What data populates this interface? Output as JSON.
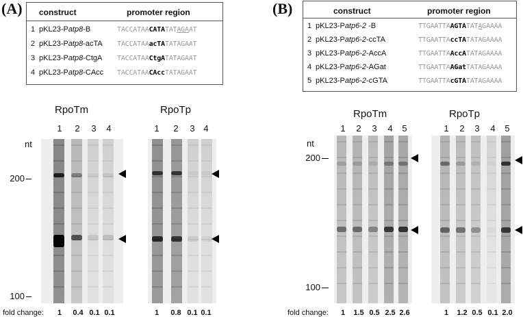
{
  "panelA": {
    "label": "(A)",
    "table": {
      "col1": "construct",
      "col2": "promoter region",
      "rows": [
        {
          "num": "1",
          "pre": "pKL23-P",
          "it": "atp8",
          "post": "-B",
          "seq_pre": "TACCATAA",
          "seq_bold": "CATA",
          "seq_mid": "TAT",
          "seq_u": "AGA",
          "seq_post": "AT"
        },
        {
          "num": "2",
          "pre": "pKL23-P",
          "it": "atp8",
          "post": "-acTA",
          "seq_pre": "TACCATAA",
          "seq_bold": "acTA",
          "seq_mid": "TATAGAAT",
          "seq_u": "",
          "seq_post": ""
        },
        {
          "num": "3",
          "pre": "pKL23-P",
          "it": "atp8",
          "post": "-CtgA",
          "seq_pre": "TACCATAA",
          "seq_bold": "CtgA",
          "seq_mid": "TATAGAAT",
          "seq_u": "",
          "seq_post": ""
        },
        {
          "num": "4",
          "pre": "pKL23-P",
          "it": "atp8",
          "post": "-CAcc",
          "seq_pre": "TACCATAA",
          "seq_bold": "CAcc",
          "seq_mid": "TATAGAAT",
          "seq_u": "",
          "seq_post": ""
        }
      ]
    },
    "gel1_title": "RpoTm",
    "gel2_title": "RpoTp",
    "lanes": [
      "1",
      "2",
      "3",
      "4"
    ],
    "nt_label": "nt",
    "mw_200": "200",
    "mw_100": "100",
    "fold_label": "fold change:",
    "fold1": [
      "1",
      "0.4",
      "0.1",
      "0.1"
    ],
    "fold2": [
      "1",
      "0.8",
      "0.1",
      "0.1"
    ]
  },
  "panelB": {
    "label": "(B)",
    "table": {
      "col1": "construct",
      "col2": "promoter region",
      "rows": [
        {
          "num": "1",
          "pre": "pKL23-P",
          "it": "atp6-2",
          "post": " -B",
          "seq_pre": "TTGAATTA",
          "seq_bold": "AGTA",
          "seq_mid": "TAT",
          "seq_u": "A",
          "seq_post": "GAAAA"
        },
        {
          "num": "2",
          "pre": "pKL23-P",
          "it": "atp6-2",
          "post": "-ccTA",
          "seq_pre": "TTGAATTA",
          "seq_bold": "ccTA",
          "seq_mid": "TATAGAAAA",
          "seq_u": "",
          "seq_post": ""
        },
        {
          "num": "3",
          "pre": "pKL23-P",
          "it": "atp6-2",
          "post": "-AccA",
          "seq_pre": "TTGAATTA",
          "seq_bold": "AccA",
          "seq_mid": "TATAGAAAA",
          "seq_u": "",
          "seq_post": ""
        },
        {
          "num": "4",
          "pre": "pKL23-P",
          "it": "atp6-2",
          "post": "-AGat",
          "seq_pre": "TTGAATTA",
          "seq_bold": "AGat",
          "seq_mid": "TATAGAAAA",
          "seq_u": "",
          "seq_post": ""
        },
        {
          "num": "5",
          "pre": "pKL23-P",
          "it": "atp6-2",
          "post": "-cGTA",
          "seq_pre": "TTGAATTA",
          "seq_bold": "cGTA",
          "seq_mid": "TATAGAAAA",
          "seq_u": "",
          "seq_post": ""
        }
      ]
    },
    "gel1_title": "RpoTm",
    "gel2_title": "RpoTp",
    "lanes": [
      "1",
      "2",
      "3",
      "4",
      "5"
    ],
    "nt_label": "nt",
    "mw_200": "200",
    "mw_100": "100",
    "fold_label": "fold change:",
    "fold1": [
      "1",
      "1.5",
      "0.5",
      "2.5",
      "2.6"
    ],
    "fold2": [
      "1",
      "1.2",
      "0.5",
      "0.1",
      "2.0"
    ]
  },
  "gels": {
    "A1": {
      "lane_intensity": [
        1.0,
        0.4,
        0.1,
        0.1
      ],
      "upper_band": [
        0.85,
        0.35,
        0.05,
        0.08
      ],
      "lower_band": [
        1.0,
        0.6,
        0.1,
        0.15
      ]
    },
    "A2": {
      "lane_intensity": [
        0.9,
        0.8,
        0.1,
        0.1
      ],
      "upper_band": [
        0.7,
        0.7,
        0.05,
        0.05
      ],
      "lower_band": [
        0.75,
        0.7,
        0.08,
        0.05
      ]
    },
    "B1": {
      "lane_intensity": [
        0.4,
        0.45,
        0.35,
        0.65,
        0.6
      ],
      "upper_band": [
        0.15,
        0.15,
        0.1,
        0.3,
        0.35
      ],
      "lower_band": [
        0.45,
        0.45,
        0.35,
        0.7,
        0.75
      ]
    },
    "B2": {
      "lane_intensity": [
        0.45,
        0.35,
        0.3,
        0.05,
        0.7
      ],
      "upper_band": [
        0.45,
        0.2,
        0.1,
        0.02,
        0.75
      ],
      "lower_band": [
        0.5,
        0.45,
        0.3,
        0.03,
        0.7
      ]
    }
  }
}
